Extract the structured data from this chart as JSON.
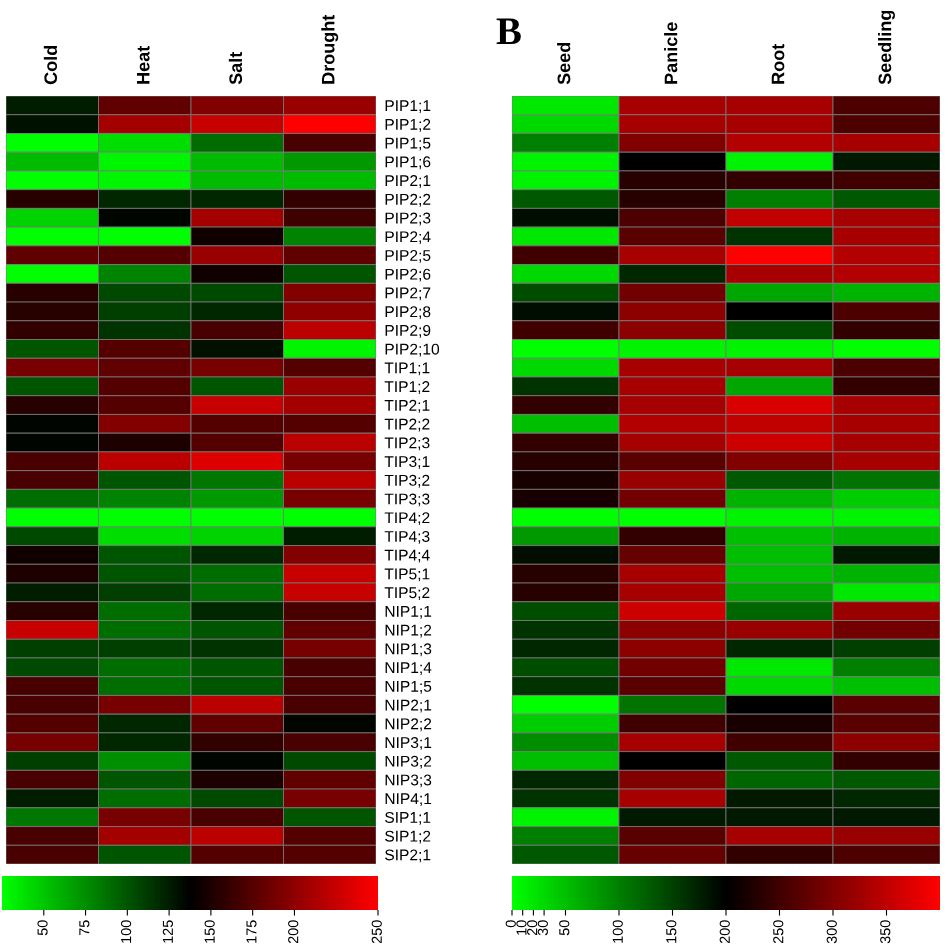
{
  "chart_data": [
    {
      "type": "heatmap",
      "categories": [
        "Cold",
        "Heat",
        "Salt",
        "Drought"
      ],
      "y_categories": [
        "PIP1;1",
        "PIP1;2",
        "PIP1;5",
        "PIP1;6",
        "PIP2;1",
        "PIP2;2",
        "PIP2;3",
        "PIP2;4",
        "PIP2;5",
        "PIP2;6",
        "PIP2;7",
        "PIP2;8",
        "PIP2;9",
        "PIP2;10",
        "TIP1;1",
        "TIP1;2",
        "TIP2;1",
        "TIP2;2",
        "TIP2;3",
        "TIP3;1",
        "TIP3;2",
        "TIP3;3",
        "TIP4;2",
        "TIP4;3",
        "TIP4;4",
        "TIP5;1",
        "TIP5;2",
        "NIP1;1",
        "NIP1;2",
        "NIP1;3",
        "NIP1;4",
        "NIP1;5",
        "NIP2;1",
        "NIP2;2",
        "NIP3;1",
        "NIP3;2",
        "NIP3;3",
        "NIP4;1",
        "SIP1;1",
        "SIP1;2",
        "SIP2;1"
      ],
      "cells": [
        [
          125,
          180,
          195,
          205
        ],
        [
          130,
          210,
          225,
          250
        ],
        [
          25,
          40,
          90,
          170
        ],
        [
          55,
          30,
          55,
          70
        ],
        [
          25,
          30,
          55,
          55
        ],
        [
          155,
          120,
          120,
          160
        ],
        [
          45,
          135,
          210,
          165
        ],
        [
          25,
          25,
          145,
          80
        ],
        [
          180,
          175,
          205,
          180
        ],
        [
          25,
          80,
          145,
          100
        ],
        [
          155,
          105,
          105,
          195
        ],
        [
          155,
          110,
          120,
          200
        ],
        [
          160,
          115,
          170,
          220
        ],
        [
          100,
          175,
          130,
          30
        ],
        [
          190,
          180,
          190,
          175
        ],
        [
          100,
          175,
          100,
          205
        ],
        [
          155,
          175,
          225,
          210
        ],
        [
          135,
          195,
          175,
          175
        ],
        [
          135,
          150,
          175,
          220
        ],
        [
          170,
          220,
          235,
          190
        ],
        [
          170,
          100,
          85,
          220
        ],
        [
          90,
          80,
          70,
          190
        ],
        [
          25,
          25,
          25,
          25
        ],
        [
          105,
          40,
          45,
          125
        ],
        [
          145,
          100,
          120,
          195
        ],
        [
          150,
          100,
          90,
          225
        ],
        [
          125,
          110,
          90,
          225
        ],
        [
          155,
          90,
          120,
          170
        ],
        [
          225,
          90,
          100,
          180
        ],
        [
          110,
          110,
          115,
          190
        ],
        [
          105,
          90,
          100,
          170
        ],
        [
          170,
          90,
          100,
          170
        ],
        [
          170,
          190,
          220,
          170
        ],
        [
          175,
          120,
          180,
          135
        ],
        [
          190,
          120,
          160,
          170
        ],
        [
          110,
          75,
          135,
          105
        ],
        [
          170,
          100,
          150,
          180
        ],
        [
          125,
          90,
          105,
          190
        ],
        [
          85,
          190,
          170,
          100
        ],
        [
          170,
          210,
          220,
          175
        ],
        [
          170,
          100,
          175,
          175
        ]
      ],
      "clim": [
        25,
        250
      ],
      "cticks": [
        50,
        75,
        100,
        125,
        150,
        175,
        200,
        250
      ]
    },
    {
      "type": "heatmap",
      "title": "B",
      "categories": [
        "Seed",
        "Panicle",
        "Root",
        "Seedling"
      ],
      "y_categories": [
        null,
        null,
        null,
        null,
        null,
        null,
        null,
        null,
        null,
        null,
        null,
        null,
        null,
        null,
        null,
        null,
        null,
        null,
        null,
        null,
        null,
        null,
        null,
        null,
        null,
        null,
        null,
        null,
        null,
        null,
        null,
        null,
        null,
        null,
        null,
        null,
        null,
        null,
        null,
        null,
        null
      ],
      "cells": [
        [
          20,
          330,
          330,
          260
        ],
        [
          30,
          330,
          330,
          260
        ],
        [
          100,
          300,
          340,
          330
        ],
        [
          10,
          200,
          10,
          180
        ],
        [
          10,
          230,
          240,
          250
        ],
        [
          130,
          230,
          100,
          130
        ],
        [
          190,
          260,
          350,
          330
        ],
        [
          20,
          270,
          160,
          330
        ],
        [
          250,
          330,
          400,
          340
        ],
        [
          30,
          170,
          330,
          340
        ],
        [
          140,
          290,
          70,
          60
        ],
        [
          190,
          310,
          200,
          260
        ],
        [
          250,
          310,
          140,
          240
        ],
        [
          0,
          10,
          10,
          0
        ],
        [
          30,
          330,
          330,
          260
        ],
        [
          160,
          330,
          70,
          240
        ],
        [
          240,
          330,
          370,
          330
        ],
        [
          50,
          340,
          350,
          330
        ],
        [
          240,
          330,
          360,
          330
        ],
        [
          230,
          270,
          300,
          330
        ],
        [
          220,
          320,
          130,
          110
        ],
        [
          220,
          290,
          60,
          40
        ],
        [
          0,
          0,
          10,
          10
        ],
        [
          80,
          240,
          50,
          60
        ],
        [
          190,
          280,
          50,
          180
        ],
        [
          230,
          330,
          50,
          60
        ],
        [
          230,
          330,
          70,
          20
        ],
        [
          140,
          360,
          120,
          320
        ],
        [
          160,
          310,
          320,
          290
        ],
        [
          170,
          310,
          170,
          150
        ],
        [
          140,
          290,
          20,
          100
        ],
        [
          160,
          270,
          30,
          50
        ],
        [
          0,
          110,
          200,
          270
        ],
        [
          40,
          250,
          220,
          270
        ],
        [
          90,
          330,
          250,
          310
        ],
        [
          50,
          200,
          130,
          240
        ],
        [
          170,
          300,
          120,
          130
        ],
        [
          160,
          330,
          180,
          170
        ],
        [
          10,
          180,
          180,
          180
        ],
        [
          100,
          270,
          330,
          320
        ],
        [
          130,
          280,
          240,
          260
        ]
      ],
      "clim": [
        0,
        400
      ],
      "cticks": [
        0,
        10,
        20,
        30,
        50,
        100,
        150,
        200,
        250,
        300,
        350
      ]
    }
  ]
}
